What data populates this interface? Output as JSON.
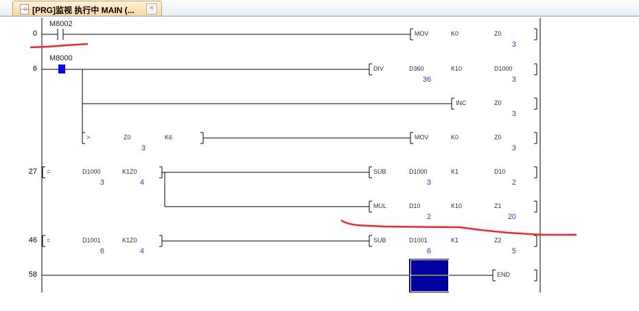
{
  "tab": {
    "title": "[PRG]监视 执行中 MAIN (...",
    "icon": "ladder-program-icon",
    "close": "×"
  },
  "colors": {
    "value": "#4030e8",
    "active_contact": "#0000ff",
    "cursor": "#0000a0",
    "annotation": "#ff2020"
  },
  "rungs": [
    {
      "step": "0",
      "contact": "M8002"
    },
    {
      "step": "6",
      "contact": "M8000"
    },
    {
      "step": "27"
    },
    {
      "step": "46"
    },
    {
      "step": "58"
    }
  ],
  "instructions": [
    {
      "op": "MOV",
      "args": [
        {
          "name": "K0"
        },
        {
          "name": "Z0",
          "value": "3"
        }
      ]
    },
    {
      "op": "DIV",
      "args": [
        {
          "name": "D360",
          "value": "36"
        },
        {
          "name": "K10"
        },
        {
          "name": "D1000",
          "value": "3"
        }
      ]
    },
    {
      "op": "INC",
      "args": [
        {
          "name": "Z0",
          "value": "3"
        }
      ]
    },
    {
      "op": ">",
      "args": [
        {
          "name": "Z0",
          "value": "3"
        },
        {
          "name": "K6"
        }
      ]
    },
    {
      "op": "MOV",
      "args": [
        {
          "name": "K0"
        },
        {
          "name": "Z0",
          "value": "3"
        }
      ]
    },
    {
      "op": "=",
      "args": [
        {
          "name": "D1000",
          "value": "3"
        },
        {
          "name": "K1Z0",
          "value": "4"
        }
      ]
    },
    {
      "op": "SUB",
      "args": [
        {
          "name": "D1000",
          "value": "3"
        },
        {
          "name": "K1"
        },
        {
          "name": "D10",
          "value": "2"
        }
      ]
    },
    {
      "op": "MUL",
      "args": [
        {
          "name": "D10",
          "value": "2"
        },
        {
          "name": "K10"
        },
        {
          "name": "Z1",
          "value": "20"
        }
      ]
    },
    {
      "op": "=",
      "args": [
        {
          "name": "D1001",
          "value": "6"
        },
        {
          "name": "K1Z0",
          "value": "4"
        }
      ]
    },
    {
      "op": "SUB",
      "args": [
        {
          "name": "D1001",
          "value": "6"
        },
        {
          "name": "K1"
        },
        {
          "name": "Z2",
          "value": "5"
        }
      ]
    },
    {
      "op": "END",
      "args": []
    }
  ]
}
